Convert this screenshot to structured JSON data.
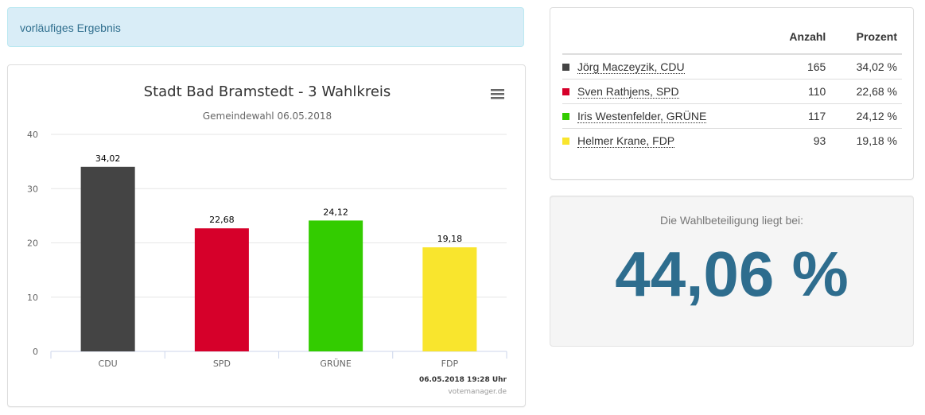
{
  "alert": {
    "text": "vorläufiges Ergebnis"
  },
  "chart_data": {
    "type": "bar",
    "title": "Stadt Bad Bramstedt - 3 Wahlkreis",
    "subtitle": "Gemeindewahl 06.05.2018",
    "categories": [
      "CDU",
      "SPD",
      "GRÜNE",
      "FDP"
    ],
    "values": [
      34.02,
      22.68,
      24.12,
      19.18
    ],
    "value_labels": [
      "34,02",
      "22,68",
      "24,12",
      "19,18"
    ],
    "colors": [
      "#444444",
      "#d6002a",
      "#33cc00",
      "#f9e52d"
    ],
    "ylim": [
      0,
      40
    ],
    "yticks": [
      "0",
      "10",
      "20",
      "30",
      "40"
    ],
    "grid": true,
    "timestamp": "06.05.2018 19:28 Uhr",
    "credit": "votemanager.de",
    "menu_icon": "hamburger-menu-icon"
  },
  "results_table": {
    "headers": {
      "count": "Anzahl",
      "percent": "Prozent"
    },
    "rows": [
      {
        "name": "Jörg Maczeyzik, CDU",
        "count": "165",
        "percent": "34,02 %",
        "color": "#444444"
      },
      {
        "name": "Sven Rathjens, SPD",
        "count": "110",
        "percent": "22,68 %",
        "color": "#d6002a"
      },
      {
        "name": "Iris Westenfelder, GRÜNE",
        "count": "117",
        "percent": "24,12 %",
        "color": "#33cc00"
      },
      {
        "name": "Helmer Krane, FDP",
        "count": "93",
        "percent": "19,18 %",
        "color": "#f9e52d"
      }
    ]
  },
  "turnout": {
    "label": "Die Wahlbeteiligung liegt bei:",
    "value": "44,06 %"
  }
}
